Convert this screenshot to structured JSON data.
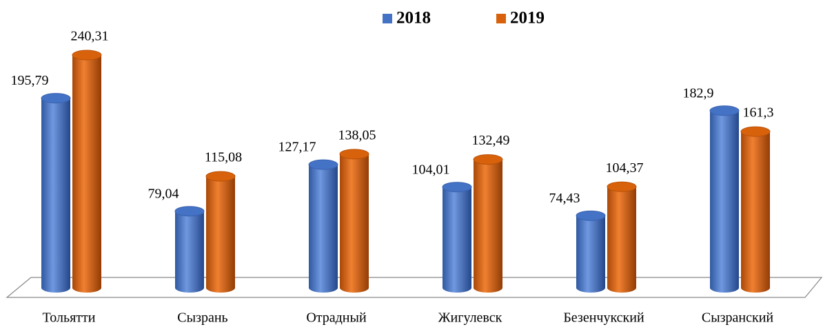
{
  "chart_data": {
    "type": "bar",
    "categories": [
      "Тольятти",
      "Сызрань",
      "Отрадный",
      "Жигулевск",
      "Безенчукский",
      "Сызранский"
    ],
    "series": [
      {
        "name": "2018",
        "color": "#4472c4",
        "values": [
          195.79,
          79.04,
          127.17,
          104.01,
          74.43,
          182.9
        ],
        "value_labels": [
          "195,79",
          "79,04",
          "127,17",
          "104,01",
          "74,43",
          "182,9"
        ]
      },
      {
        "name": "2019",
        "color": "#d8620c",
        "values": [
          240.31,
          115.08,
          138.05,
          132.49,
          104.37,
          161.3
        ],
        "value_labels": [
          "240,31",
          "115,08",
          "138,05",
          "132,49",
          "104,37",
          "161,3"
        ]
      }
    ],
    "legend": "top"
  }
}
